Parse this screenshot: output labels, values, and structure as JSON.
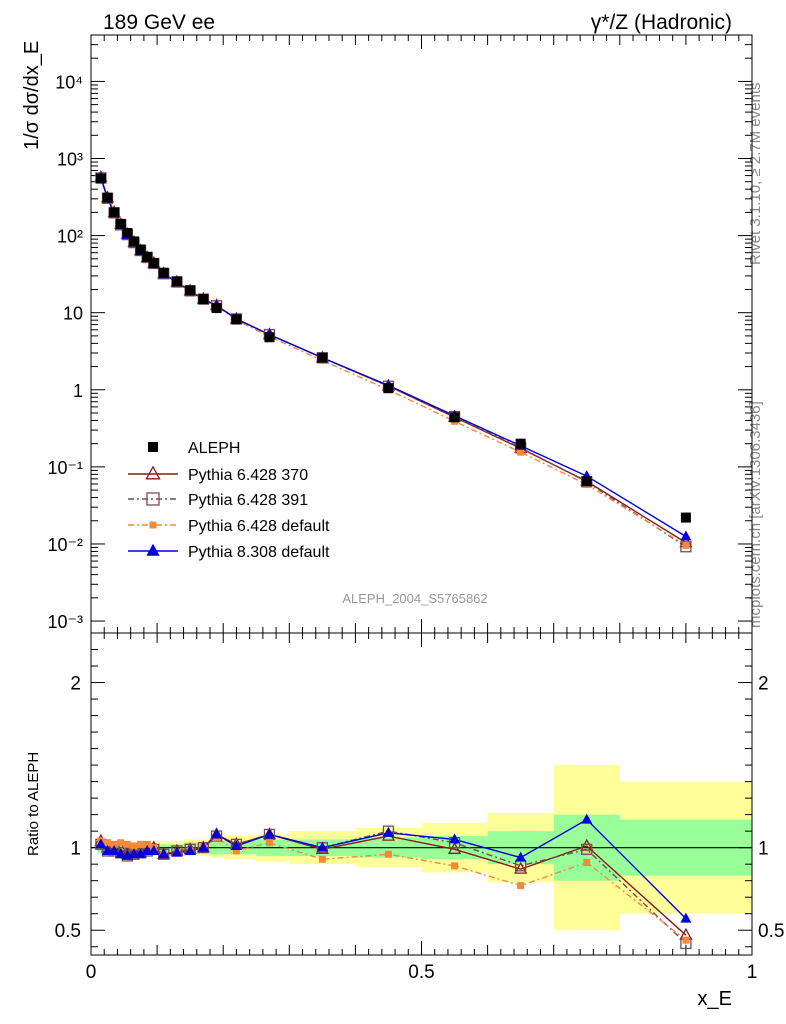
{
  "header": {
    "left_title": "189 GeV ee",
    "right_title": "γ*/Z (Hadronic)"
  },
  "side_labels": {
    "rivet": "Rivet 3.1.10, ≥ 2.7M events",
    "mcplots": "mcplots.cern.ch [arXiv:1306.3436]"
  },
  "analysis_label": "ALEPH_2004_S5765862",
  "legend": {
    "data": "ALEPH",
    "p370": "Pythia 6.428 370",
    "p391": "Pythia 6.428 391",
    "pdef": "Pythia 6.428 default",
    "p8": "Pythia 8.308 default"
  },
  "colors": {
    "data": "#000000",
    "p370": "#8b1a1a",
    "p391": "#7a4a5a",
    "pdef": "#f5893a",
    "p8": "#0000dd",
    "band_inner": "#99ff99",
    "band_outer": "#ffff99"
  },
  "chart_data": [
    {
      "type": "scatter",
      "title": "",
      "xlabel": "x_E",
      "ylabel": "1/σ dσ/dx_E",
      "yscale": "log",
      "xlim": [
        0,
        1
      ],
      "ylim": [
        0.0007,
        40000
      ],
      "yticks": [
        "10⁻³",
        "10⁻²",
        "10⁻¹",
        "1",
        "10",
        "10²",
        "10³",
        "10⁴"
      ],
      "x": [
        0.015,
        0.025,
        0.035,
        0.045,
        0.055,
        0.065,
        0.075,
        0.085,
        0.095,
        0.11,
        0.13,
        0.15,
        0.17,
        0.19,
        0.22,
        0.27,
        0.35,
        0.45,
        0.55,
        0.65,
        0.75,
        0.9
      ],
      "series": [
        {
          "name": "ALEPH",
          "marker": "filled-square",
          "values": [
            550,
            310,
            200,
            142,
            108,
            84,
            66,
            53,
            44,
            33,
            25.5,
            19.5,
            15,
            11.5,
            8.2,
            4.8,
            2.6,
            1.05,
            0.44,
            0.2,
            0.065,
            0.022
          ]
        },
        {
          "name": "Pythia 6.428 370",
          "marker": "open-triangle",
          "values": [
            570,
            310,
            200,
            140,
            104,
            82,
            64,
            52,
            44,
            32,
            25,
            19.2,
            15,
            12.4,
            8.3,
            5.2,
            2.6,
            1.12,
            0.44,
            0.174,
            0.065,
            0.0104
          ]
        },
        {
          "name": "Pythia 6.428 391",
          "marker": "open-square",
          "values": [
            560,
            305,
            197,
            138,
            103,
            81,
            64,
            52,
            43.5,
            32,
            25,
            19.2,
            15,
            12.3,
            8.3,
            5.2,
            2.6,
            1.11,
            0.45,
            0.177,
            0.064,
            0.0092
          ]
        },
        {
          "name": "Pythia 6.428 default",
          "marker": "filled-small-square",
          "values": [
            570,
            320,
            205,
            146,
            110,
            85,
            68,
            54,
            44,
            31.5,
            24.8,
            19,
            15,
            12.2,
            8.0,
            4.9,
            2.4,
            1.0,
            0.39,
            0.155,
            0.059,
            0.0096
          ]
        },
        {
          "name": "Pythia 8.308 default",
          "marker": "filled-triangle",
          "values": [
            560,
            305,
            196,
            136,
            102,
            81,
            63,
            52,
            43,
            31.5,
            24.8,
            19,
            15,
            12.4,
            8.3,
            5.2,
            2.6,
            1.14,
            0.46,
            0.188,
            0.076,
            0.0125
          ]
        }
      ]
    },
    {
      "type": "line",
      "title": "",
      "xlabel": "x_E",
      "ylabel": "Ratio to ALEPH",
      "xlim": [
        0,
        1
      ],
      "ylim": [
        0.35,
        2.3
      ],
      "yticks": [
        0.5,
        1,
        2
      ],
      "xticks": [
        0,
        0.5,
        1
      ],
      "x": [
        0.015,
        0.025,
        0.035,
        0.045,
        0.055,
        0.065,
        0.075,
        0.085,
        0.095,
        0.11,
        0.13,
        0.15,
        0.17,
        0.19,
        0.22,
        0.27,
        0.35,
        0.45,
        0.55,
        0.65,
        0.75,
        0.9
      ],
      "bands": [
        {
          "x": [
            0.01,
            0.02
          ],
          "inner": 0.03,
          "outer": 0.04
        },
        {
          "x": [
            0.02,
            0.1
          ],
          "inner": 0.02,
          "outer": 0.03
        },
        {
          "x": [
            0.1,
            0.14
          ],
          "inner": 0.02,
          "outer": 0.04
        },
        {
          "x": [
            0.14,
            0.16
          ],
          "inner": 0.03,
          "outer": 0.05
        },
        {
          "x": [
            0.16,
            0.18
          ],
          "inner": 0.03,
          "outer": 0.05
        },
        {
          "x": [
            0.18,
            0.2
          ],
          "inner": 0.04,
          "outer": 0.06
        },
        {
          "x": [
            0.2,
            0.25
          ],
          "inner": 0.04,
          "outer": 0.07
        },
        {
          "x": [
            0.25,
            0.3
          ],
          "inner": 0.05,
          "outer": 0.08
        },
        {
          "x": [
            0.3,
            0.4
          ],
          "inner": 0.05,
          "outer": 0.1
        },
        {
          "x": [
            0.4,
            0.5
          ],
          "inner": 0.06,
          "outer": 0.12
        },
        {
          "x": [
            0.5,
            0.6
          ],
          "inner": 0.07,
          "outer": 0.15
        },
        {
          "x": [
            0.6,
            0.7
          ],
          "inner": 0.1,
          "outer": 0.21
        },
        {
          "x": [
            0.7,
            0.8
          ],
          "inner": 0.2,
          "outer": 0.5
        },
        {
          "x": [
            0.8,
            1.0
          ],
          "inner": 0.17,
          "outer": 0.4
        }
      ],
      "series": [
        {
          "name": "Pythia 6.428 370",
          "values": [
            1.04,
            1.0,
            0.99,
            0.99,
            0.96,
            0.98,
            0.97,
            0.99,
            1.0,
            0.96,
            0.98,
            0.99,
            1.0,
            1.08,
            1.02,
            1.08,
            0.99,
            1.07,
            0.99,
            0.87,
            1.01,
            0.47
          ]
        },
        {
          "name": "Pythia 6.428 391",
          "values": [
            1.02,
            0.98,
            0.98,
            0.97,
            0.95,
            0.96,
            0.97,
            0.98,
            0.99,
            0.96,
            0.98,
            0.99,
            1.0,
            1.07,
            1.02,
            1.08,
            1.0,
            1.1,
            1.03,
            0.89,
            0.99,
            0.42
          ]
        },
        {
          "name": "Pythia 6.428 default",
          "values": [
            1.04,
            1.03,
            1.02,
            1.03,
            1.02,
            1.01,
            1.02,
            1.02,
            1.0,
            0.96,
            0.97,
            0.98,
            1.0,
            1.06,
            0.98,
            1.03,
            0.93,
            0.96,
            0.89,
            0.77,
            0.91,
            0.44
          ]
        },
        {
          "name": "Pythia 8.308 default",
          "values": [
            1.02,
            0.98,
            0.98,
            0.96,
            0.95,
            0.96,
            0.96,
            0.98,
            0.98,
            0.96,
            0.97,
            0.98,
            1.0,
            1.08,
            1.01,
            1.08,
            1.0,
            1.09,
            1.05,
            0.94,
            1.17,
            0.57
          ]
        }
      ]
    }
  ]
}
